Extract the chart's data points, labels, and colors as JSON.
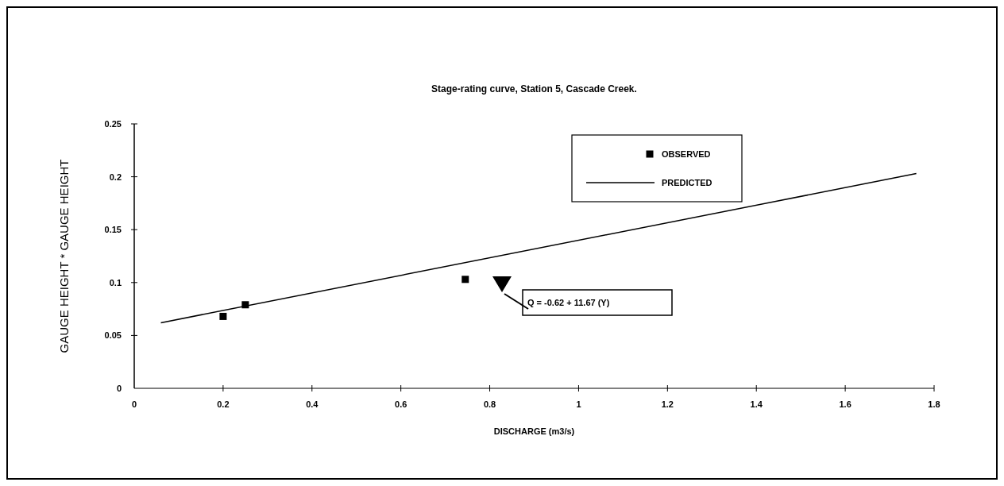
{
  "chart_data": {
    "type": "scatter",
    "title": "Stage-rating curve, Station 5, Cascade Creek.",
    "xlabel": "DISCHARGE (m3/s)",
    "ylabel": "GAUGE HEIGHT * GAUGE HEIGHT",
    "xlim": [
      0,
      1.8
    ],
    "xticks": [
      0,
      0.2,
      0.4,
      0.6,
      0.8,
      1,
      1.2,
      1.4,
      1.6,
      1.8
    ],
    "ylim": [
      0,
      0.25
    ],
    "yticks": [
      0,
      0.05,
      0.1,
      0.15,
      0.2,
      0.25
    ],
    "legend": "top right",
    "grid": false,
    "annotations": [
      "Q = -0.62 + 11.67 (Y)"
    ],
    "series": [
      {
        "name": "OBSERVED",
        "marker": "square",
        "color": "#000000",
        "x": [
          0.2,
          0.25,
          0.745
        ],
        "values": [
          0.068,
          0.079,
          0.103
        ]
      },
      {
        "name": "PREDICTED",
        "type": "line",
        "marker": "none",
        "color": "#000000",
        "x": [
          0.06,
          1.76
        ],
        "values": [
          0.062,
          0.203
        ]
      }
    ]
  }
}
